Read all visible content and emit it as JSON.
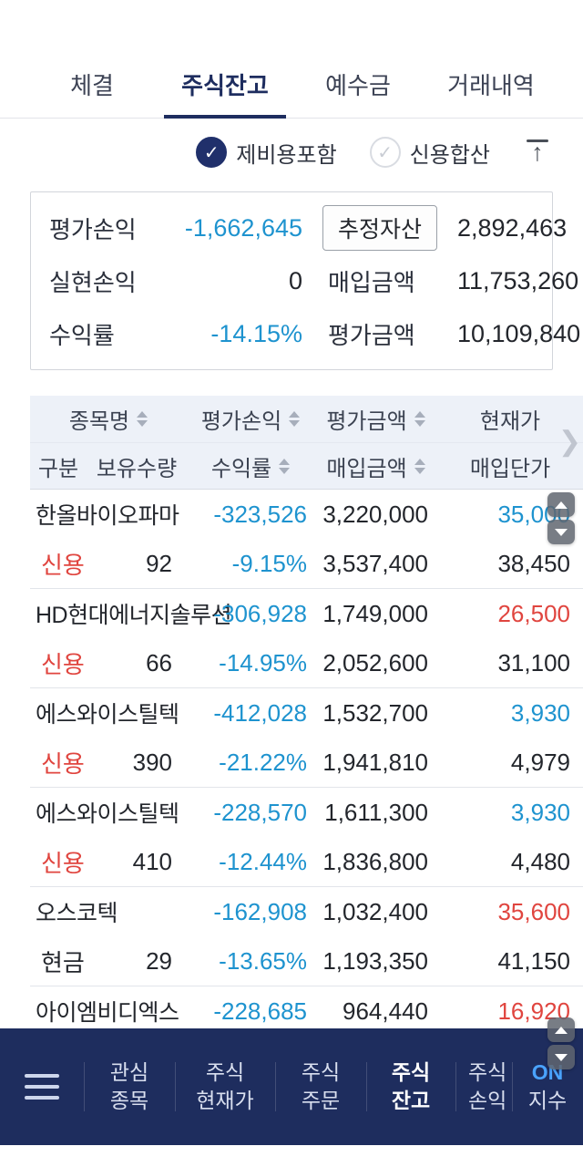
{
  "tabs": {
    "items": [
      {
        "label": "체결",
        "active": false
      },
      {
        "label": "주식잔고",
        "active": true
      },
      {
        "label": "예수금",
        "active": false
      },
      {
        "label": "거래내역",
        "active": false
      }
    ]
  },
  "filters": {
    "include_all_costs": {
      "label": "제비용포함",
      "checked": true
    },
    "credit_combined": {
      "label": "신용합산",
      "checked": false
    },
    "check_glyph": "✓"
  },
  "summary": {
    "eval_pl_label": "평가손익",
    "eval_pl_value": "-1,662,645",
    "est_asset_label": "추정자산",
    "est_asset_value": "2,892,463",
    "realized_pl_label": "실현손익",
    "realized_pl_value": "0",
    "buy_amount_label": "매입금액",
    "buy_amount_value": "11,753,260",
    "return_rate_label": "수익률",
    "return_rate_value": "-14.15%",
    "eval_amount_label": "평가금액",
    "eval_amount_value": "10,109,840"
  },
  "table": {
    "header": {
      "col_name": "종목명",
      "col_eval_pl": "평가손익",
      "col_eval_amount": "평가금액",
      "col_current_price": "현재가",
      "col_type": "구분",
      "col_qty": "보유수량",
      "col_rate": "수익률",
      "col_buy_amount": "매입금액",
      "col_buy_price": "매입단가",
      "scroll_chevron": "❯"
    },
    "rows": [
      {
        "name": "한올바이오파마",
        "pl": "-323,526",
        "eval_amount": "3,220,000",
        "price": "35,000",
        "price_color": "blue",
        "type": "신용",
        "type_color": "red",
        "qty": "92",
        "rate": "-9.15%",
        "buy_amount": "3,537,400",
        "unit_price": "38,450"
      },
      {
        "name": "HD현대에너지솔루션",
        "pl": "-306,928",
        "eval_amount": "1,749,000",
        "price": "26,500",
        "price_color": "red",
        "type": "신용",
        "type_color": "red",
        "qty": "66",
        "rate": "-14.95%",
        "buy_amount": "2,052,600",
        "unit_price": "31,100"
      },
      {
        "name": "에스와이스틸텍",
        "pl": "-412,028",
        "eval_amount": "1,532,700",
        "price": "3,930",
        "price_color": "blue",
        "type": "신용",
        "type_color": "red",
        "qty": "390",
        "rate": "-21.22%",
        "buy_amount": "1,941,810",
        "unit_price": "4,979"
      },
      {
        "name": "에스와이스틸텍",
        "pl": "-228,570",
        "eval_amount": "1,611,300",
        "price": "3,930",
        "price_color": "blue",
        "type": "신용",
        "type_color": "red",
        "qty": "410",
        "rate": "-12.44%",
        "buy_amount": "1,836,800",
        "unit_price": "4,480"
      },
      {
        "name": "오스코텍",
        "pl": "-162,908",
        "eval_amount": "1,032,400",
        "price": "35,600",
        "price_color": "red",
        "type": "현금",
        "type_color": "dark",
        "qty": "29",
        "rate": "-13.65%",
        "buy_amount": "1,193,350",
        "unit_price": "41,150"
      },
      {
        "name": "아이엠비디엑스",
        "pl": "-228,685",
        "eval_amount": "964,440",
        "price": "16,920",
        "price_color": "red"
      }
    ]
  },
  "bottom_nav": {
    "items": [
      {
        "line1": "관심",
        "line2": "종목",
        "active": false,
        "width": "w100"
      },
      {
        "line1": "주식",
        "line2": "현재가",
        "active": false,
        "width": "w110"
      },
      {
        "line1": "주식",
        "line2": "주문",
        "active": false,
        "width": "w100"
      },
      {
        "line1": "주식",
        "line2": "잔고",
        "active": true,
        "width": "w98"
      },
      {
        "line1": "주식",
        "line2": "손익",
        "active": false,
        "width": "w62",
        "clipped": true
      },
      {
        "line1": "ON",
        "line2": "지수",
        "active": false,
        "width": "w78",
        "brand": true
      }
    ]
  },
  "colors": {
    "accent_navy": "#1e2d5f",
    "value_blue": "#1e93cf",
    "value_red": "#e0453f",
    "header_bg": "#edf1f8"
  }
}
